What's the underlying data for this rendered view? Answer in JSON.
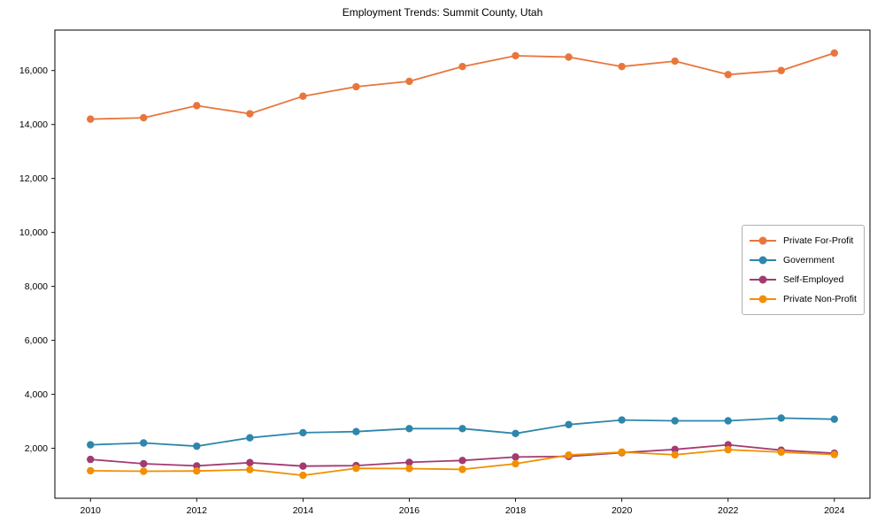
{
  "title": "Employment Trends: Summit County, Utah",
  "chart_data": {
    "type": "line",
    "title": "Employment Trends: Summit County, Utah",
    "xlabel": "",
    "ylabel": "",
    "grid": false,
    "legend_position": "center right",
    "x": [
      2010,
      2011,
      2012,
      2013,
      2014,
      2015,
      2016,
      2017,
      2018,
      2019,
      2020,
      2021,
      2022,
      2023,
      2024
    ],
    "x_ticks": [
      "2010",
      "2012",
      "2014",
      "2016",
      "2018",
      "2020",
      "2022",
      "2024"
    ],
    "x_tick_values": [
      2010,
      2012,
      2014,
      2016,
      2018,
      2020,
      2022,
      2024
    ],
    "y_ticks": [
      "2,000",
      "4,000",
      "6,000",
      "8,000",
      "10,000",
      "12,000",
      "14,000",
      "16,000"
    ],
    "y_tick_values": [
      2000,
      4000,
      6000,
      8000,
      10000,
      12000,
      14000,
      16000
    ],
    "xlim": [
      2009.33,
      2024.67
    ],
    "ylim": [
      150,
      17500
    ],
    "series": [
      {
        "name": "Private For-Profit",
        "color": "#E8763C",
        "values": [
          14200,
          14250,
          14700,
          14400,
          15050,
          15400,
          15600,
          16150,
          16550,
          16500,
          16150,
          16350,
          15850,
          16000,
          16650
        ]
      },
      {
        "name": "Government",
        "color": "#2E86AB",
        "values": [
          2130,
          2200,
          2080,
          2390,
          2580,
          2620,
          2730,
          2730,
          2550,
          2880,
          3050,
          3020,
          3020,
          3120,
          3080
        ]
      },
      {
        "name": "Self-Employed",
        "color": "#A23B72",
        "values": [
          1590,
          1430,
          1350,
          1470,
          1340,
          1360,
          1480,
          1550,
          1680,
          1700,
          1840,
          1960,
          2130,
          1930,
          1820
        ]
      },
      {
        "name": "Private Non-Profit",
        "color": "#F18F01",
        "values": [
          1170,
          1150,
          1160,
          1210,
          1000,
          1260,
          1250,
          1220,
          1430,
          1750,
          1860,
          1760,
          1950,
          1860,
          1770
        ]
      }
    ]
  }
}
